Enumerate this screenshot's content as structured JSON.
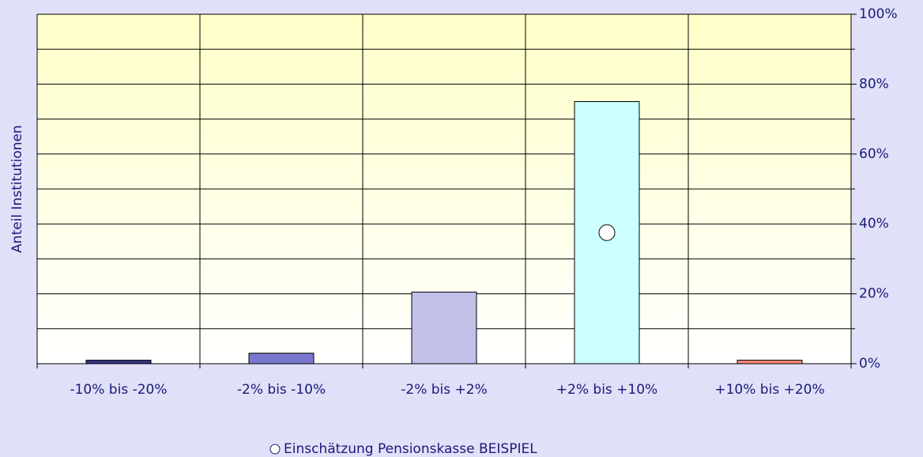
{
  "chart_data": {
    "type": "bar",
    "y_axis_label": "Anteil Institutionen",
    "categories": [
      "-10% bis -20%",
      "-2% bis -10%",
      "-2% bis +2%",
      "+2% bis +10%",
      "+10% bis +20%"
    ],
    "series": [
      {
        "values": [
          1,
          3,
          20.5,
          75,
          1
        ],
        "colors": [
          "#333388",
          "#7777cc",
          "#c0c0e8",
          "#ccffff",
          "#ff8877"
        ]
      },
      {
        "name": "Einschätzung Pensionskasse BEISPIEL",
        "type": "scatter",
        "color": "#ffffff",
        "values": [
          null,
          null,
          null,
          37.5,
          null
        ]
      }
    ],
    "ylim": [
      0,
      100
    ],
    "yticks": [
      {
        "value": 0,
        "label": "0%"
      },
      {
        "value": 20,
        "label": "20%"
      },
      {
        "value": 40,
        "label": "40%"
      },
      {
        "value": 60,
        "label": "60%"
      },
      {
        "value": 80,
        "label": "80%"
      },
      {
        "value": 100,
        "label": "100%"
      }
    ],
    "minor_yticks": [
      10,
      30,
      50,
      70,
      90
    ],
    "grid": true
  }
}
